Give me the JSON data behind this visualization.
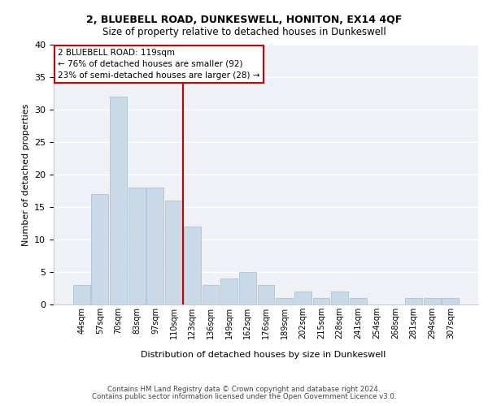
{
  "title1": "2, BLUEBELL ROAD, DUNKESWELL, HONITON, EX14 4QF",
  "title2": "Size of property relative to detached houses in Dunkeswell",
  "xlabel": "Distribution of detached houses by size in Dunkeswell",
  "ylabel": "Number of detached properties",
  "bar_color": "#c9d9e8",
  "bar_edge_color": "#a8c4d8",
  "categories": [
    "44sqm",
    "57sqm",
    "70sqm",
    "83sqm",
    "97sqm",
    "110sqm",
    "123sqm",
    "136sqm",
    "149sqm",
    "162sqm",
    "176sqm",
    "189sqm",
    "202sqm",
    "215sqm",
    "228sqm",
    "241sqm",
    "254sqm",
    "268sqm",
    "281sqm",
    "294sqm",
    "307sqm"
  ],
  "values": [
    3,
    17,
    32,
    18,
    18,
    16,
    12,
    3,
    4,
    5,
    3,
    1,
    2,
    1,
    2,
    1,
    0,
    0,
    1,
    1,
    1
  ],
  "vline_color": "#cc0000",
  "annotation_text": "2 BLUEBELL ROAD: 119sqm\n← 76% of detached houses are smaller (92)\n23% of semi-detached houses are larger (28) →",
  "annotation_box_color": "#cc0000",
  "ylim": [
    0,
    40
  ],
  "yticks": [
    0,
    5,
    10,
    15,
    20,
    25,
    30,
    35,
    40
  ],
  "footer1": "Contains HM Land Registry data © Crown copyright and database right 2024.",
  "footer2": "Contains public sector information licensed under the Open Government Licence v3.0.",
  "bg_color": "#eef2f7",
  "grid_color": "#ffffff"
}
